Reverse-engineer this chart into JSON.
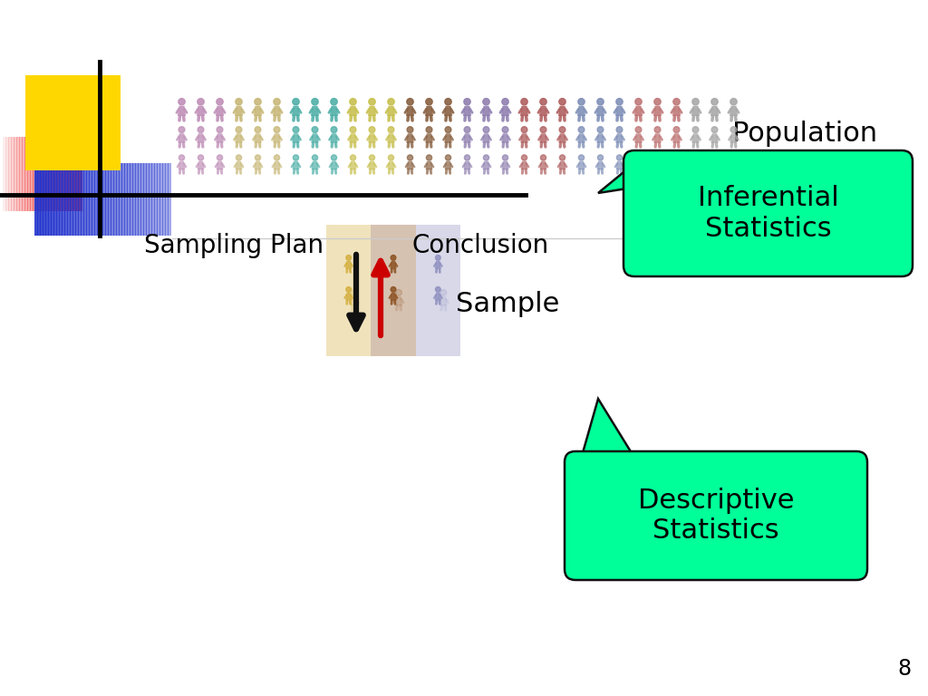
{
  "bg_color": "#ffffff",
  "population_label": "Population",
  "sampling_plan_label": "Sampling Plan",
  "conclusion_label": "Conclusion",
  "sample_label": "Sample",
  "inferential_label": "Inferential\nStatistics",
  "descriptive_label": "Descriptive\nStatistics",
  "bubble_color": "#00FF99",
  "bubble_edge_color": "#111111",
  "page_number": "8",
  "crowd_colors": [
    "#C090B8",
    "#C8B878",
    "#50B0A8",
    "#C8C050",
    "#886040",
    "#9080B0",
    "#B06060",
    "#8090B8",
    "#C07878",
    "#A8A8A8"
  ],
  "sample_colors": [
    "#D4B040",
    "#8B5020",
    "#9090C0"
  ],
  "logo_yellow": "#FFD700",
  "logo_red": "#EE3333",
  "logo_blue": "#2233CC",
  "arrow_down_color": "#111111",
  "arrow_up_color": "#CC0000"
}
